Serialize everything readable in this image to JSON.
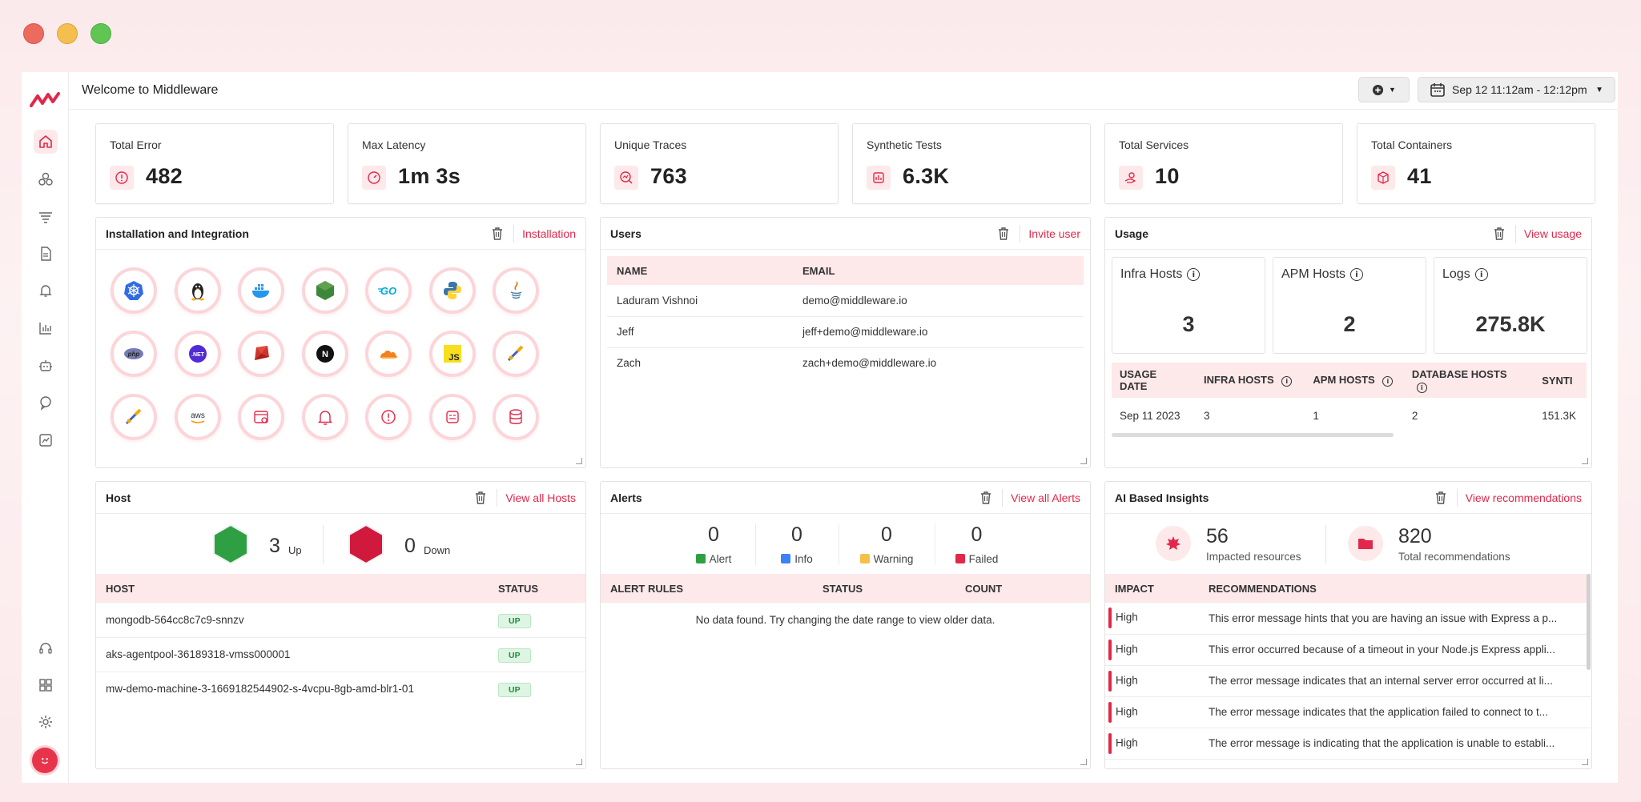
{
  "header": {
    "title": "Welcome to Middleware",
    "date_range": "Sep 12 11:12am - 12:12pm"
  },
  "colors": {
    "accent": "#e2284a",
    "accent_soft": "#fde8ea",
    "up_green": "#2ea043",
    "down_red": "#d1193e"
  },
  "stats": [
    {
      "label": "Total Error",
      "value": "482",
      "icon": "alert-circle-icon"
    },
    {
      "label": "Max Latency",
      "value": "1m 3s",
      "icon": "speedometer-icon"
    },
    {
      "label": "Unique Traces",
      "value": "763",
      "icon": "trace-search-icon"
    },
    {
      "label": "Synthetic Tests",
      "value": "6.3K",
      "icon": "synthetic-test-icon"
    },
    {
      "label": "Total Services",
      "value": "10",
      "icon": "service-hand-icon"
    },
    {
      "label": "Total Containers",
      "value": "41",
      "icon": "container-box-icon"
    }
  ],
  "installation": {
    "title": "Installation and Integration",
    "link": "Installation",
    "icons": [
      "kubernetes-icon",
      "linux-icon",
      "docker-icon",
      "nodejs-icon",
      "go-icon",
      "python-icon",
      "java-icon",
      "php-icon",
      "dotnet-icon",
      "ruby-icon",
      "nextjs-icon",
      "cloudflare-icon",
      "javascript-icon",
      "telescope-icon",
      "telescope-icon",
      "aws-icon",
      "browser-monitor-icon",
      "bell-icon",
      "alert-circle-icon",
      "log-icon",
      "database-icon"
    ],
    "go_label": "GO",
    "js_label": "JS",
    "aws_label": "aws",
    "php_label": "php",
    "net_label": ".NET",
    "next_label": "N"
  },
  "users": {
    "title": "Users",
    "link": "Invite user",
    "columns": [
      "NAME",
      "EMAIL"
    ],
    "rows": [
      {
        "name": "Laduram Vishnoi",
        "email": "demo@middleware.io"
      },
      {
        "name": "Jeff",
        "email": "jeff+demo@middleware.io"
      },
      {
        "name": "Zach",
        "email": "zach+demo@middleware.io"
      }
    ]
  },
  "usage": {
    "title": "Usage",
    "link": "View usage",
    "kpis": [
      {
        "label": "Infra Hosts",
        "value": "3"
      },
      {
        "label": "APM Hosts",
        "value": "2"
      },
      {
        "label": "Logs",
        "value": "275.8K"
      }
    ],
    "columns": [
      "USAGE DATE",
      "INFRA HOSTS",
      "APM HOSTS",
      "DATABASE HOSTS",
      "SYNTI"
    ],
    "rows": [
      {
        "date": "Sep 11 2023",
        "infra": "3",
        "apm": "1",
        "db": "2",
        "synth": "151.3K"
      }
    ]
  },
  "host": {
    "title": "Host",
    "link": "View all Hosts",
    "up_count": "3",
    "up_label": "Up",
    "down_count": "0",
    "down_label": "Down",
    "columns": [
      "HOST",
      "STATUS"
    ],
    "rows": [
      {
        "host": "mongodb-564cc8c7c9-snnzv",
        "status": "UP"
      },
      {
        "host": "aks-agentpool-36189318-vmss000001",
        "status": "UP"
      },
      {
        "host": "mw-demo-machine-3-1669182544902-s-4vcpu-8gb-amd-blr1-01",
        "status": "UP"
      }
    ]
  },
  "alerts": {
    "title": "Alerts",
    "link": "View all Alerts",
    "counts": [
      {
        "value": "0",
        "label": "Alert",
        "color": "#2ea043"
      },
      {
        "value": "0",
        "label": "Info",
        "color": "#3b82f6"
      },
      {
        "value": "0",
        "label": "Warning",
        "color": "#f5c04a"
      },
      {
        "value": "0",
        "label": "Failed",
        "color": "#e2284a"
      }
    ],
    "columns": [
      "ALERT RULES",
      "STATUS",
      "COUNT"
    ],
    "empty_message": "No data found. Try changing the date range to view older data."
  },
  "insights": {
    "title": "AI Based Insights",
    "link": "View recommendations",
    "impacted_value": "56",
    "impacted_label": "Impacted resources",
    "total_value": "820",
    "total_label": "Total recommendations",
    "columns": [
      "IMPACT",
      "RECOMMENDATIONS"
    ],
    "rows": [
      {
        "impact": "High",
        "text": "This error message hints that you are having an issue with Express a p..."
      },
      {
        "impact": "High",
        "text": "This error occurred because of a timeout in your Node.js Express appli..."
      },
      {
        "impact": "High",
        "text": "The error message indicates that an internal server error occurred at li..."
      },
      {
        "impact": "High",
        "text": "The error message indicates that the application failed to connect to t..."
      },
      {
        "impact": "High",
        "text": "The error message is indicating that the application is unable to establi..."
      }
    ]
  }
}
